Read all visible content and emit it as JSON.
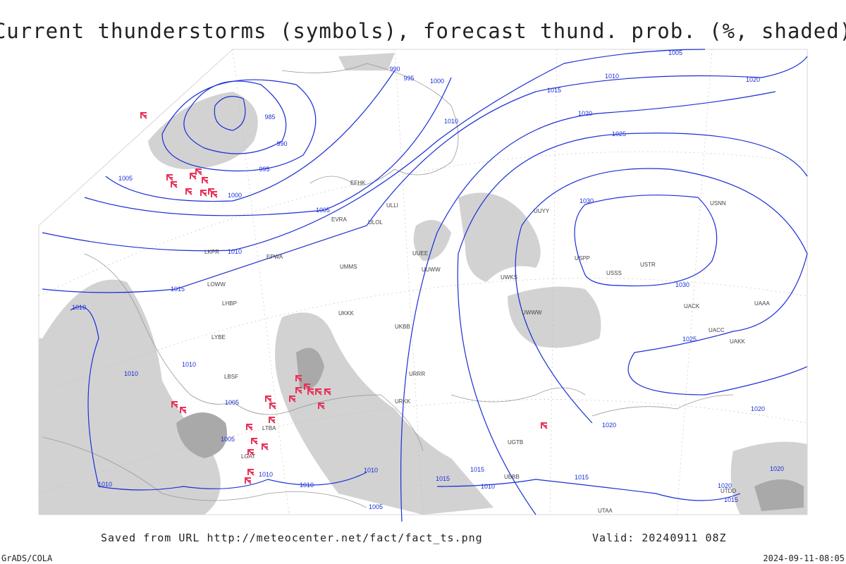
{
  "title": "Current thunderstorms (symbols), forecast thund. prob. (%, shaded)",
  "footer": {
    "saved": "Saved from URL http://meteocenter.net/fact/fact_ts.png",
    "valid": "Valid: 20240911 08Z",
    "credit": "GrADS/COLA",
    "timestamp": "2024-09-11-08:05"
  },
  "isobar_labels": [
    "990",
    "995",
    "1000",
    "1005",
    "1010",
    "1020",
    "1015",
    "1020",
    "1025",
    "985",
    "990",
    "995",
    "1005",
    "1000",
    "1005",
    "1010",
    "1010",
    "1030",
    "1030",
    "1015",
    "1010",
    "1025",
    "1010",
    "1010",
    "1005",
    "1005",
    "1020",
    "1020",
    "1010",
    "1010",
    "1010",
    "1015",
    "1015",
    "1010",
    "1015",
    "1010",
    "1005",
    "1020",
    "1015",
    "1020"
  ],
  "stations": [
    "EFHK",
    "ULLI",
    "EVRA",
    "ULOL",
    "UUEE",
    "UUWW",
    "UWKS",
    "UWWW",
    "UUYY",
    "USSS",
    "USTR",
    "USNN",
    "USPP",
    "UACC",
    "UAKK",
    "UACK",
    "UAAA",
    "UTAA",
    "UTDD",
    "URRR",
    "URKK",
    "UKKK",
    "UKBB",
    "UMMS",
    "EPWA",
    "LKPR",
    "LOWW",
    "LHBP",
    "LYBE",
    "LBSF",
    "LTBA",
    "LGAT",
    "UBBB",
    "UGTB"
  ]
}
